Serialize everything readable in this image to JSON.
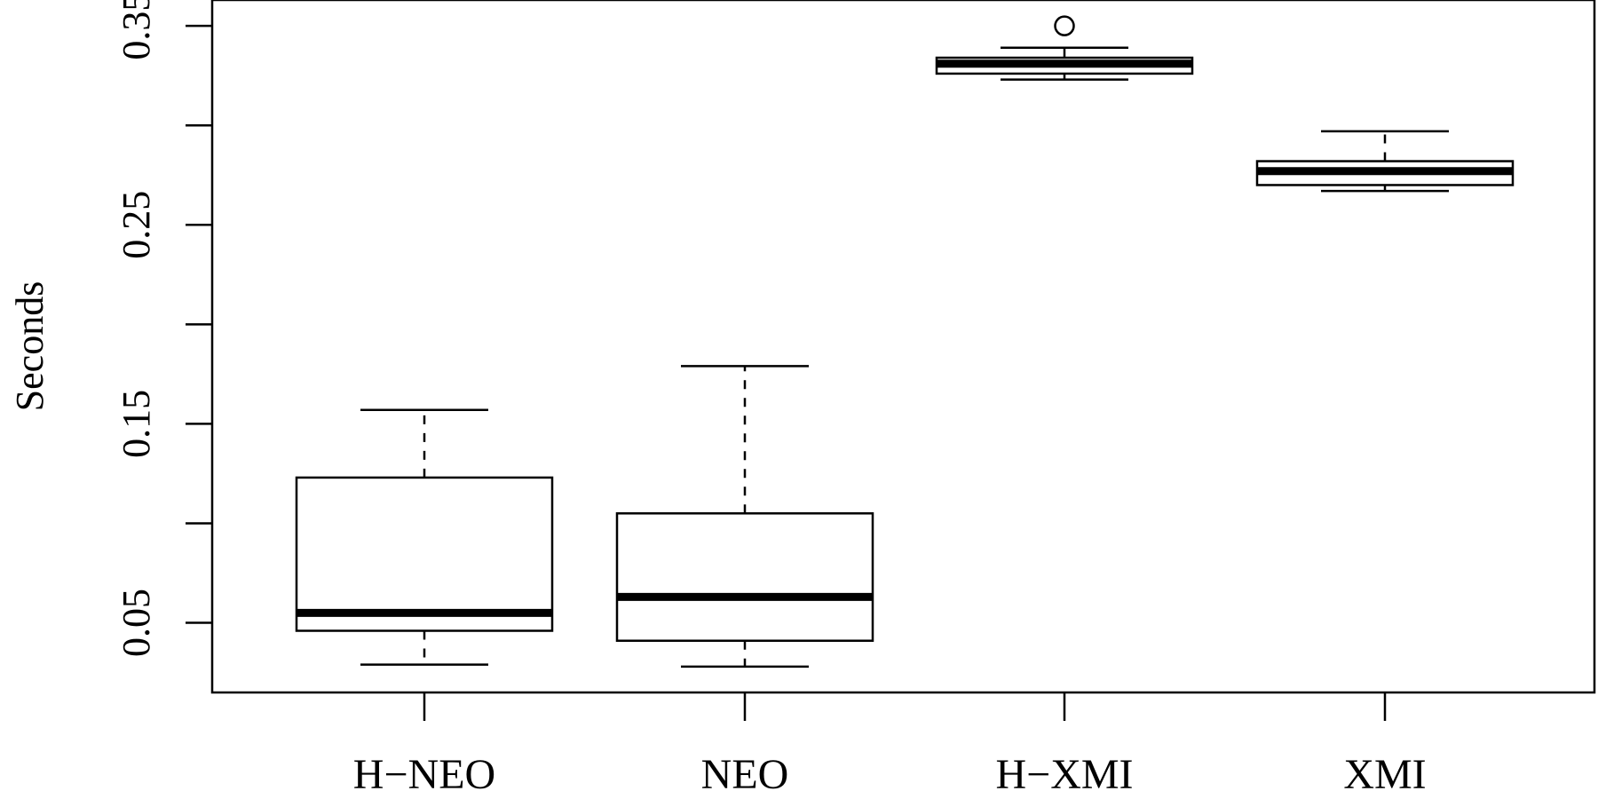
{
  "chart_data": {
    "type": "boxplot",
    "title": "",
    "xlabel": "",
    "ylabel": "Seconds",
    "ylim": [
      0.015,
      0.363
    ],
    "y_ticks": [
      0.05,
      0.1,
      0.15,
      0.2,
      0.25,
      0.3,
      0.35
    ],
    "y_tick_labels": [
      "0.05",
      "",
      "0.15",
      "",
      "0.25",
      "",
      "0.35"
    ],
    "categories": [
      "H−NEO",
      "NEO",
      "H−XMI",
      "XMI"
    ],
    "boxes": [
      {
        "name": "H−NEO",
        "whisker_low": 0.029,
        "q1": 0.046,
        "median": 0.055,
        "q3": 0.123,
        "whisker_high": 0.157,
        "outliers": []
      },
      {
        "name": "NEO",
        "whisker_low": 0.028,
        "q1": 0.041,
        "median": 0.063,
        "q3": 0.105,
        "whisker_high": 0.179,
        "outliers": []
      },
      {
        "name": "H−XMI",
        "whisker_low": 0.323,
        "q1": 0.326,
        "median": 0.331,
        "q3": 0.334,
        "whisker_high": 0.339,
        "outliers": [
          0.35
        ]
      },
      {
        "name": "XMI",
        "whisker_low": 0.267,
        "q1": 0.27,
        "median": 0.277,
        "q3": 0.282,
        "whisker_high": 0.297,
        "outliers": []
      }
    ],
    "grid": false,
    "legend": "none"
  }
}
